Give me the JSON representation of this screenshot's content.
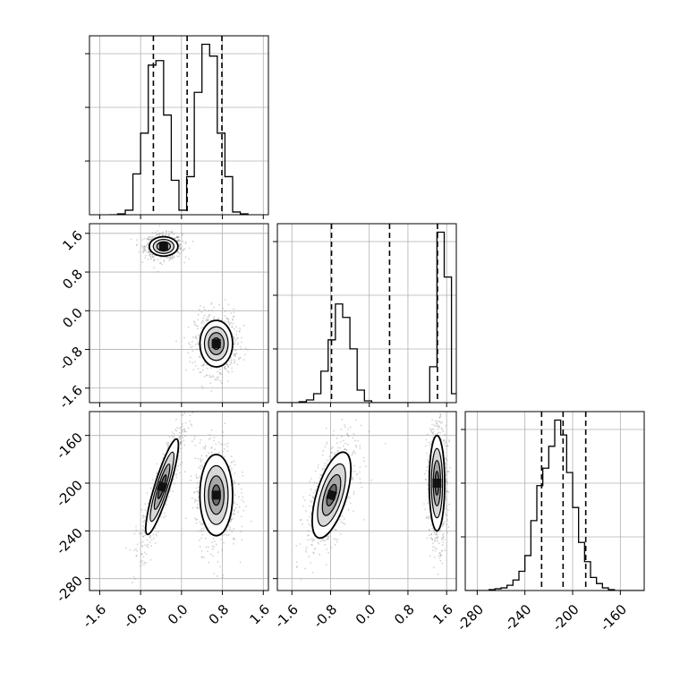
{
  "chart_data": {
    "type": "corner",
    "grid": true,
    "colors": {
      "ink": "#000000",
      "grid": "#b0b0b0",
      "scatter": "#808080"
    },
    "parameters": [
      {
        "range": [
          -1.8,
          1.7
        ],
        "ticks": [
          "-1.6",
          "-0.8",
          "0.0",
          "0.8",
          "1.6"
        ],
        "tick_values": [
          -1.6,
          -0.8,
          0.0,
          0.8,
          1.6
        ]
      },
      {
        "range": [
          -1.9,
          1.8
        ],
        "ticks": [
          "-1.6",
          "-0.8",
          "0.0",
          "0.8",
          "1.6"
        ],
        "tick_values": [
          -1.6,
          -0.8,
          0.0,
          0.8,
          1.6
        ]
      },
      {
        "range": [
          -290,
          -140
        ],
        "ticks": [
          "-280",
          "-240",
          "-200",
          "-160"
        ],
        "tick_values": [
          -280,
          -240,
          -200,
          -160
        ]
      }
    ],
    "panels": [
      {
        "id": "p00",
        "kind": "hist",
        "param": 0,
        "bins": [
          -1.4,
          -1.25,
          -1.1,
          -0.95,
          -0.8,
          -0.65,
          -0.5,
          -0.35,
          -0.2,
          -0.05,
          0.1,
          0.25,
          0.4,
          0.55,
          0.7,
          0.85,
          1.0,
          1.15,
          1.3
        ],
        "counts": [
          0,
          1,
          5,
          45,
          90,
          165,
          170,
          110,
          38,
          5,
          42,
          135,
          188,
          175,
          90,
          42,
          3,
          1
        ],
        "dashed": [
          -0.55,
          0.11,
          0.79
        ]
      },
      {
        "id": "p11",
        "kind": "hist",
        "param": 1,
        "bins": [
          -1.9,
          -1.75,
          -1.6,
          -1.45,
          -1.3,
          -1.15,
          -1.0,
          -0.85,
          -0.7,
          -0.55,
          -0.4,
          -0.25,
          -0.1,
          0.05,
          0.2,
          0.35,
          0.5,
          0.65,
          0.8,
          0.95,
          1.1,
          1.25,
          1.4,
          1.55,
          1.7,
          1.85
        ],
        "counts": [
          0,
          0,
          0,
          1,
          3,
          10,
          35,
          70,
          110,
          95,
          60,
          14,
          2,
          0,
          0,
          0,
          0,
          0,
          0,
          0,
          0,
          40,
          190,
          140,
          10
        ],
        "dashed": [
          -0.78,
          0.42,
          1.41
        ]
      },
      {
        "id": "p22",
        "kind": "hist",
        "param": 2,
        "bins": [
          -290,
          -285,
          -280,
          -275,
          -270,
          -265,
          -260,
          -255,
          -250,
          -245,
          -240,
          -235,
          -230,
          -225,
          -220,
          -215,
          -210,
          -205,
          -200,
          -195,
          -190,
          -185,
          -180,
          -175,
          -170,
          -165,
          -160,
          -155,
          -150,
          -145,
          -140
        ],
        "counts": [
          0,
          0,
          0,
          0,
          1,
          2,
          3,
          6,
          12,
          22,
          40,
          80,
          120,
          140,
          165,
          195,
          178,
          135,
          95,
          55,
          33,
          15,
          8,
          3,
          1,
          0,
          0,
          0,
          0,
          0
        ],
        "dashed": [
          -226,
          -208,
          -189
        ]
      },
      {
        "id": "p10",
        "kind": "2d",
        "x": 0,
        "y": 1,
        "modes": [
          {
            "mx": -0.35,
            "my": 1.33,
            "sx": 0.14,
            "sy": 0.1,
            "r": 0.0
          },
          {
            "mx": 0.68,
            "my": -0.68,
            "sx": 0.16,
            "sy": 0.24,
            "r": 0.0
          }
        ]
      },
      {
        "id": "p20",
        "kind": "2d",
        "x": 0,
        "y": 2,
        "modes": [
          {
            "mx": -0.38,
            "my": -203,
            "sx": 0.16,
            "sy": 20,
            "r": 0.88
          },
          {
            "mx": 0.68,
            "my": -210,
            "sx": 0.16,
            "sy": 17,
            "r": 0.0
          }
        ]
      },
      {
        "id": "p21",
        "kind": "2d",
        "x": 1,
        "y": 2,
        "modes": [
          {
            "mx": -0.78,
            "my": -210,
            "sx": 0.2,
            "sy": 18,
            "r": 0.6
          },
          {
            "mx": 1.4,
            "my": -200,
            "sx": 0.08,
            "sy": 20,
            "r": 0.0
          }
        ]
      }
    ]
  }
}
